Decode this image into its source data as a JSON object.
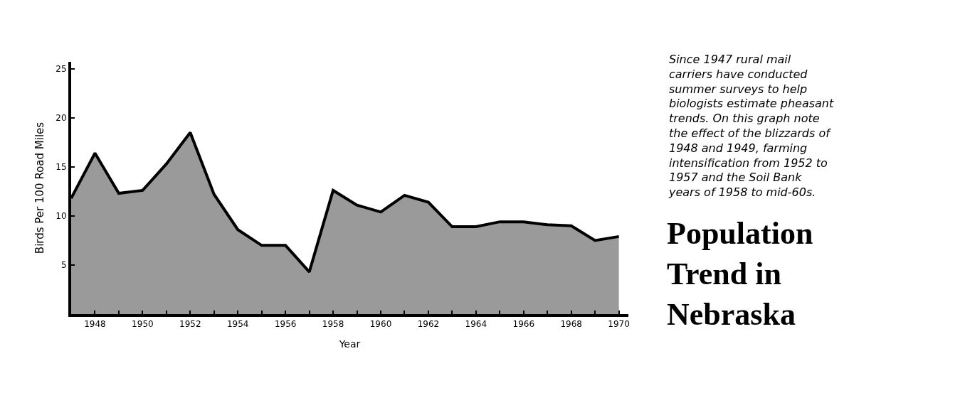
{
  "chart_data": {
    "type": "area",
    "title": "Population\nTrend in\nNebraska",
    "xlabel": "Year",
    "ylabel": "Birds Per 100 Road Miles",
    "annotations": [
      "Since 1947 rural mail\ncarriers have conducted\nsummer surveys to help\nbiologists estimate pheasant\ntrends. On this graph note\nthe effect of the blizzards of\n1948 and 1949, farming\nintensification from 1952 to\n1957 and the Soil Bank\nyears of 1958 to mid-60s."
    ],
    "x": [
      1947,
      1948,
      1949,
      1950,
      1951,
      1952,
      1953,
      1954,
      1955,
      1956,
      1957,
      1958,
      1959,
      1960,
      1961,
      1962,
      1963,
      1964,
      1965,
      1966,
      1967,
      1968,
      1969,
      1970
    ],
    "series": [
      {
        "color": "#9a9a9a",
        "values": [
          11.8,
          16.4,
          12.3,
          12.6,
          15.3,
          18.5,
          12.2,
          8.6,
          7.0,
          7.0,
          4.3,
          12.6,
          11.1,
          10.4,
          12.1,
          11.4,
          8.9,
          8.9,
          9.4,
          9.4,
          9.1,
          9.0,
          7.5,
          7.9
        ]
      }
    ],
    "xlim": [
      1947,
      1970.4
    ],
    "ylim": [
      0,
      25.7
    ],
    "xticks": [
      1948,
      {
        "value": 1949,
        "label": null
      },
      1950,
      {
        "value": 1951,
        "label": null
      },
      1952,
      {
        "value": 1953,
        "label": null
      },
      1954,
      {
        "value": 1955,
        "label": null
      },
      1956,
      {
        "value": 1957,
        "label": null
      },
      1958,
      {
        "value": 1959,
        "label": null
      },
      1960,
      {
        "value": 1961,
        "label": null
      },
      1962,
      {
        "value": 1963,
        "label": null
      },
      1964,
      {
        "value": 1965,
        "label": null
      },
      1966,
      {
        "value": 1967,
        "label": null
      },
      1968,
      {
        "value": 1969,
        "label": null
      },
      1970
    ],
    "yticks": [
      5,
      10,
      15,
      20,
      25
    ]
  }
}
